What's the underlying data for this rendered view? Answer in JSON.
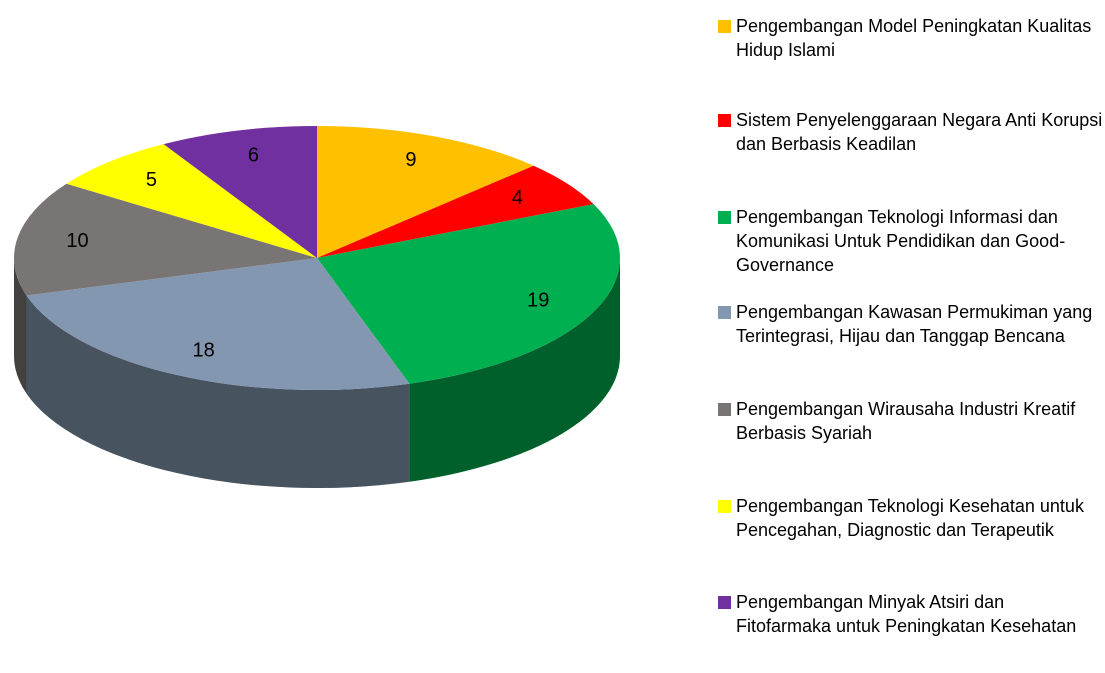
{
  "chart_data": {
    "type": "pie",
    "categories": [
      "Pengembangan Model Peningkatan Kualitas Hidup Islami",
      "Sistem Penyelenggaraan Negara Anti Korupsi dan Berbasis Keadilan",
      "Pengembangan Teknologi Informasi dan Komunikasi Untuk Pendidikan dan Good-Governance",
      "Pengembangan Kawasan Permukiman yang Terintegrasi, Hijau dan Tanggap Bencana",
      "Pengembangan Wirausaha Industri Kreatif Berbasis Syariah",
      "Pengembangan Teknologi Kesehatan untuk Pencegahan, Diagnostic dan Terapeutik",
      "Pengembangan Minyak Atsiri dan Fitofarmaka untuk Peningkatan Kesehatan"
    ],
    "values": [
      9,
      4,
      19,
      18,
      10,
      5,
      6
    ],
    "colors": [
      "#ffc000",
      "#ff0000",
      "#00b050",
      "#8497b0",
      "#7a7575",
      "#ffff00",
      "#7030a0"
    ],
    "legend": "right"
  }
}
